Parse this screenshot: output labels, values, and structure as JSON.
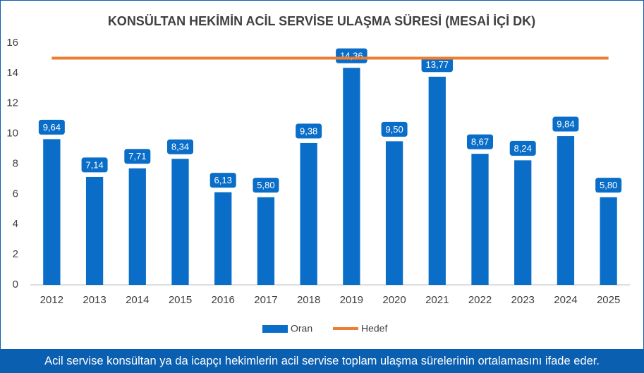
{
  "chart_data": {
    "type": "bar",
    "title": "KONSÜLTAN HEKİMİN ACİL SERVİSE ULAŞMA SÜRESİ (MESAİ İÇİ DK)",
    "categories": [
      "2012",
      "2013",
      "2014",
      "2015",
      "2016",
      "2017",
      "2018",
      "2019",
      "2020",
      "2021",
      "2022",
      "2023",
      "2024",
      "2025"
    ],
    "series": [
      {
        "name": "Oran",
        "type": "bar",
        "color": "#0a6ec8",
        "values": [
          9.64,
          7.14,
          7.71,
          8.34,
          6.13,
          5.8,
          9.38,
          14.36,
          9.5,
          13.77,
          8.67,
          8.24,
          9.84,
          5.8
        ],
        "value_labels": [
          "9,64",
          "7,14",
          "7,71",
          "8,34",
          "6,13",
          "5,80",
          "9,38",
          "14,36",
          "9,50",
          "13,77",
          "8,67",
          "8,24",
          "9,84",
          "5,80"
        ]
      },
      {
        "name": "Hedef",
        "type": "line",
        "color": "#ed7d31",
        "values": [
          15,
          15,
          15,
          15,
          15,
          15,
          15,
          15,
          15,
          15,
          15,
          15,
          15,
          15
        ]
      }
    ],
    "ylim": [
      0,
      16
    ],
    "yticks": [
      0,
      2,
      4,
      6,
      8,
      10,
      12,
      14,
      16
    ],
    "grid": false,
    "legend": "bottom"
  },
  "footer": "Acil servise konsültan ya da icapçı hekimlerin acil servise toplam ulaşma sürelerinin ortalamasını ifade eder."
}
